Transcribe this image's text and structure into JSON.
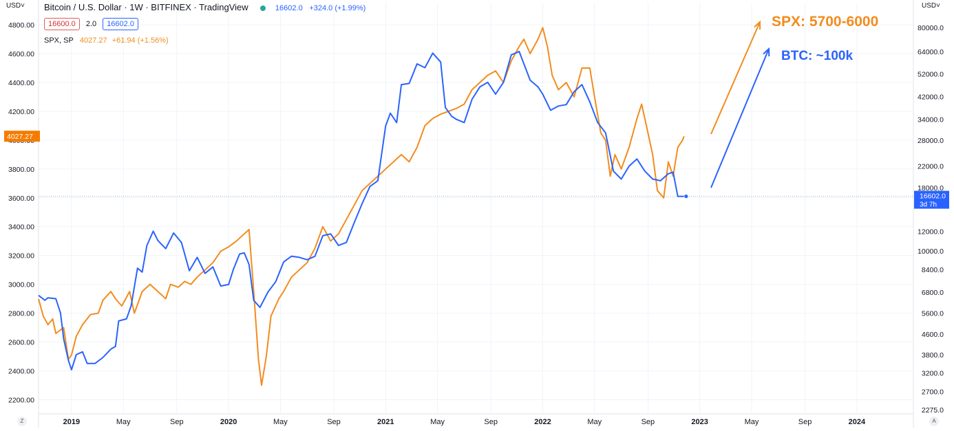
{
  "header": {
    "title": "Bitcoin / U.S. Dollar · 1W · BITFINEX · TradingView",
    "last": "16602.0",
    "change": "+324.0 (+1.99%)",
    "bid": "16600.0",
    "spread": "2.0",
    "ask": "16602.0",
    "spx_label": "SPX, SP",
    "spx_last": "4027.27",
    "spx_change": "+61.94 (+1.56%)"
  },
  "axis_buttons": {
    "left_currency": "USD",
    "right_currency": "USD",
    "left_corner": "Z",
    "right_corner": "A"
  },
  "chart_data": {
    "type": "line",
    "title": "Bitcoin / U.S. Dollar · 1W · BITFINEX · TradingView",
    "x_start": 2018.79,
    "x_end": 2024.36,
    "x_ticks": [
      {
        "t": 2019.0,
        "label": "2019",
        "bold": true
      },
      {
        "t": 2019.33,
        "label": "May",
        "bold": false
      },
      {
        "t": 2019.67,
        "label": "Sep",
        "bold": false
      },
      {
        "t": 2020.0,
        "label": "2020",
        "bold": true
      },
      {
        "t": 2020.33,
        "label": "May",
        "bold": false
      },
      {
        "t": 2020.67,
        "label": "Sep",
        "bold": false
      },
      {
        "t": 2021.0,
        "label": "2021",
        "bold": true
      },
      {
        "t": 2021.33,
        "label": "May",
        "bold": false
      },
      {
        "t": 2021.67,
        "label": "Sep",
        "bold": false
      },
      {
        "t": 2022.0,
        "label": "2022",
        "bold": true
      },
      {
        "t": 2022.33,
        "label": "May",
        "bold": false
      },
      {
        "t": 2022.67,
        "label": "Sep",
        "bold": false
      },
      {
        "t": 2023.0,
        "label": "2023",
        "bold": true
      },
      {
        "t": 2023.33,
        "label": "May",
        "bold": false
      },
      {
        "t": 2023.67,
        "label": "Sep",
        "bold": false
      },
      {
        "t": 2024.0,
        "label": "2024",
        "bold": true
      }
    ],
    "left_axis": {
      "name": "SPX",
      "ylim": [
        2102,
        4953
      ],
      "ticks": [
        "4800.00",
        "4600.00",
        "4400.00",
        "4200.00",
        "4000.00",
        "3800.00",
        "3600.00",
        "3400.00",
        "3200.00",
        "3000.00",
        "2800.00",
        "2600.00",
        "2400.00",
        "2200.00"
      ]
    },
    "right_axis": {
      "name": "BTC (log scale)",
      "ticks": [
        "80000.0",
        "64000.0",
        "52000.0",
        "42000.0",
        "34000.0",
        "28000.0",
        "22000.0",
        "18000.0",
        "12000.0",
        "10000.0",
        "8400.0",
        "6800.0",
        "5600.0",
        "4600.0",
        "3800.0",
        "3200.0",
        "2700.0",
        "2275.0"
      ]
    },
    "series": [
      {
        "name": "BTC",
        "color": "#2962ff",
        "points": [
          [
            2018.79,
            6600
          ],
          [
            2018.83,
            6300
          ],
          [
            2018.85,
            6450
          ],
          [
            2018.9,
            6400
          ],
          [
            2018.93,
            5600
          ],
          [
            2018.95,
            4400
          ],
          [
            2018.98,
            3600
          ],
          [
            2019.0,
            3300
          ],
          [
            2019.03,
            3800
          ],
          [
            2019.07,
            3900
          ],
          [
            2019.1,
            3500
          ],
          [
            2019.15,
            3500
          ],
          [
            2019.2,
            3700
          ],
          [
            2019.25,
            4000
          ],
          [
            2019.28,
            4100
          ],
          [
            2019.3,
            5200
          ],
          [
            2019.35,
            5300
          ],
          [
            2019.38,
            6000
          ],
          [
            2019.42,
            8500
          ],
          [
            2019.45,
            8200
          ],
          [
            2019.48,
            10500
          ],
          [
            2019.52,
            12000
          ],
          [
            2019.55,
            11000
          ],
          [
            2019.6,
            10200
          ],
          [
            2019.65,
            11800
          ],
          [
            2019.7,
            10800
          ],
          [
            2019.75,
            8300
          ],
          [
            2019.8,
            9400
          ],
          [
            2019.85,
            8100
          ],
          [
            2019.9,
            8600
          ],
          [
            2019.95,
            7200
          ],
          [
            2020.0,
            7300
          ],
          [
            2020.03,
            8400
          ],
          [
            2020.07,
            9700
          ],
          [
            2020.1,
            9800
          ],
          [
            2020.13,
            8800
          ],
          [
            2020.16,
            6300
          ],
          [
            2020.2,
            5900
          ],
          [
            2020.25,
            6800
          ],
          [
            2020.3,
            7500
          ],
          [
            2020.35,
            9000
          ],
          [
            2020.4,
            9500
          ],
          [
            2020.45,
            9400
          ],
          [
            2020.5,
            9200
          ],
          [
            2020.55,
            9500
          ],
          [
            2020.6,
            11500
          ],
          [
            2020.65,
            11700
          ],
          [
            2020.7,
            10500
          ],
          [
            2020.75,
            10800
          ],
          [
            2020.8,
            13000
          ],
          [
            2020.85,
            15500
          ],
          [
            2020.9,
            18200
          ],
          [
            2020.95,
            19200
          ],
          [
            2021.0,
            32000
          ],
          [
            2021.03,
            36000
          ],
          [
            2021.07,
            33000
          ],
          [
            2021.1,
            47000
          ],
          [
            2021.15,
            47500
          ],
          [
            2021.2,
            57000
          ],
          [
            2021.25,
            55000
          ],
          [
            2021.3,
            63000
          ],
          [
            2021.35,
            58000
          ],
          [
            2021.38,
            38000
          ],
          [
            2021.42,
            35000
          ],
          [
            2021.45,
            34000
          ],
          [
            2021.5,
            33000
          ],
          [
            2021.55,
            41000
          ],
          [
            2021.6,
            46000
          ],
          [
            2021.65,
            48000
          ],
          [
            2021.7,
            43000
          ],
          [
            2021.75,
            48000
          ],
          [
            2021.8,
            62000
          ],
          [
            2021.85,
            64000
          ],
          [
            2021.88,
            57000
          ],
          [
            2021.92,
            49000
          ],
          [
            2021.97,
            46000
          ],
          [
            2022.0,
            43000
          ],
          [
            2022.05,
            37000
          ],
          [
            2022.1,
            38500
          ],
          [
            2022.15,
            39000
          ],
          [
            2022.2,
            44000
          ],
          [
            2022.25,
            47000
          ],
          [
            2022.3,
            40000
          ],
          [
            2022.35,
            33000
          ],
          [
            2022.4,
            30000
          ],
          [
            2022.45,
            21000
          ],
          [
            2022.5,
            19500
          ],
          [
            2022.55,
            22000
          ],
          [
            2022.6,
            23500
          ],
          [
            2022.65,
            21000
          ],
          [
            2022.7,
            19500
          ],
          [
            2022.75,
            19200
          ],
          [
            2022.8,
            20500
          ],
          [
            2022.83,
            20800
          ],
          [
            2022.86,
            16600
          ],
          [
            2022.88,
            16600
          ],
          [
            2022.9,
            16602
          ]
        ]
      },
      {
        "name": "SPX",
        "color": "#f28c1c",
        "points": [
          [
            2018.79,
            2900
          ],
          [
            2018.82,
            2780
          ],
          [
            2018.85,
            2720
          ],
          [
            2018.88,
            2760
          ],
          [
            2018.9,
            2660
          ],
          [
            2018.95,
            2700
          ],
          [
            2018.98,
            2480
          ],
          [
            2019.0,
            2510
          ],
          [
            2019.03,
            2640
          ],
          [
            2019.07,
            2720
          ],
          [
            2019.12,
            2790
          ],
          [
            2019.17,
            2800
          ],
          [
            2019.2,
            2890
          ],
          [
            2019.25,
            2950
          ],
          [
            2019.28,
            2900
          ],
          [
            2019.32,
            2850
          ],
          [
            2019.37,
            2950
          ],
          [
            2019.4,
            2800
          ],
          [
            2019.45,
            2950
          ],
          [
            2019.5,
            3000
          ],
          [
            2019.55,
            2950
          ],
          [
            2019.6,
            2900
          ],
          [
            2019.63,
            3000
          ],
          [
            2019.68,
            2980
          ],
          [
            2019.72,
            3020
          ],
          [
            2019.76,
            3000
          ],
          [
            2019.8,
            3050
          ],
          [
            2019.85,
            3100
          ],
          [
            2019.9,
            3150
          ],
          [
            2019.95,
            3230
          ],
          [
            2020.0,
            3260
          ],
          [
            2020.05,
            3300
          ],
          [
            2020.1,
            3350
          ],
          [
            2020.13,
            3380
          ],
          [
            2020.16,
            2950
          ],
          [
            2020.19,
            2480
          ],
          [
            2020.21,
            2300
          ],
          [
            2020.24,
            2500
          ],
          [
            2020.27,
            2780
          ],
          [
            2020.32,
            2900
          ],
          [
            2020.35,
            2950
          ],
          [
            2020.4,
            3050
          ],
          [
            2020.45,
            3100
          ],
          [
            2020.5,
            3150
          ],
          [
            2020.55,
            3250
          ],
          [
            2020.6,
            3400
          ],
          [
            2020.65,
            3300
          ],
          [
            2020.7,
            3350
          ],
          [
            2020.75,
            3450
          ],
          [
            2020.8,
            3550
          ],
          [
            2020.85,
            3650
          ],
          [
            2020.9,
            3700
          ],
          [
            2020.95,
            3750
          ],
          [
            2021.0,
            3800
          ],
          [
            2021.05,
            3850
          ],
          [
            2021.1,
            3900
          ],
          [
            2021.15,
            3850
          ],
          [
            2021.2,
            3950
          ],
          [
            2021.25,
            4100
          ],
          [
            2021.3,
            4150
          ],
          [
            2021.35,
            4180
          ],
          [
            2021.4,
            4200
          ],
          [
            2021.45,
            4220
          ],
          [
            2021.5,
            4250
          ],
          [
            2021.55,
            4350
          ],
          [
            2021.6,
            4400
          ],
          [
            2021.65,
            4450
          ],
          [
            2021.7,
            4480
          ],
          [
            2021.75,
            4400
          ],
          [
            2021.8,
            4550
          ],
          [
            2021.85,
            4650
          ],
          [
            2021.88,
            4700
          ],
          [
            2021.92,
            4600
          ],
          [
            2021.97,
            4700
          ],
          [
            2022.0,
            4780
          ],
          [
            2022.03,
            4650
          ],
          [
            2022.06,
            4450
          ],
          [
            2022.1,
            4350
          ],
          [
            2022.15,
            4400
          ],
          [
            2022.2,
            4300
          ],
          [
            2022.25,
            4500
          ],
          [
            2022.3,
            4500
          ],
          [
            2022.33,
            4300
          ],
          [
            2022.37,
            4050
          ],
          [
            2022.4,
            4000
          ],
          [
            2022.43,
            3750
          ],
          [
            2022.46,
            3900
          ],
          [
            2022.5,
            3800
          ],
          [
            2022.55,
            3950
          ],
          [
            2022.6,
            4150
          ],
          [
            2022.63,
            4250
          ],
          [
            2022.67,
            4050
          ],
          [
            2022.7,
            3900
          ],
          [
            2022.73,
            3650
          ],
          [
            2022.77,
            3600
          ],
          [
            2022.8,
            3850
          ],
          [
            2022.83,
            3750
          ],
          [
            2022.86,
            3950
          ],
          [
            2022.89,
            4000
          ],
          [
            2022.9,
            4027.27
          ]
        ]
      }
    ],
    "last_labels": {
      "spx": "4027.27",
      "btc": "16602.0",
      "btc_countdown": "3d 7h"
    },
    "annotations": [
      {
        "text": "SPX: 5700-6000",
        "color": "#f28c1c",
        "series": "SPX"
      },
      {
        "text": "BTC: ~100k",
        "color": "#2962ff",
        "series": "BTC"
      }
    ]
  }
}
